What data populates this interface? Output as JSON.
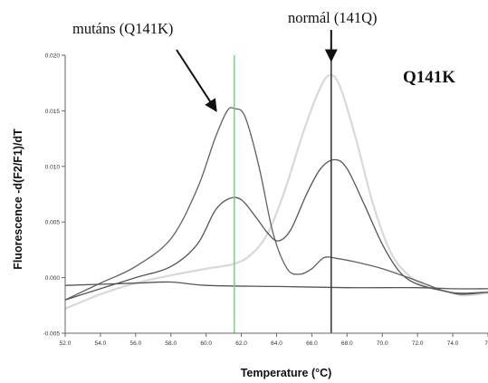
{
  "chart_data": {
    "type": "line",
    "title": "Q141K",
    "xlabel": "Temperature (°C)",
    "ylabel": "Fluorescence -d(F2/F1)/dT",
    "xlim": [
      52.0,
      76.0
    ],
    "ylim": [
      -0.005,
      0.02
    ],
    "x_ticks": [
      52.0,
      54.0,
      56.0,
      58.0,
      60.0,
      62.0,
      64.0,
      66.0,
      68.0,
      70.0,
      72.0,
      74.0,
      76.0
    ],
    "x_tick_labels": [
      "52.0",
      "54.0",
      "56.0",
      "58.0",
      "60.0",
      "62.0",
      "64.0",
      "66.0",
      "68.0",
      "70.0",
      "72.0",
      "74.0",
      "76"
    ],
    "y_ticks": [
      -0.005,
      0.0,
      0.005,
      0.01,
      0.015,
      0.02
    ],
    "y_tick_labels": [
      "-0.005",
      "0.000",
      "0.005",
      "0.010",
      "0.015",
      "0.020"
    ],
    "grid": false,
    "legend": "none",
    "series": [
      {
        "color": "#606060",
        "points": [
          [
            52.0,
            -0.002
          ],
          [
            54.0,
            -0.0005
          ],
          [
            56.0,
            0.001
          ],
          [
            58.0,
            0.0035
          ],
          [
            59.5,
            0.008
          ],
          [
            60.5,
            0.0125
          ],
          [
            61.2,
            0.015
          ],
          [
            61.6,
            0.0152
          ],
          [
            62.2,
            0.0145
          ],
          [
            63.0,
            0.01
          ],
          [
            63.8,
            0.004
          ],
          [
            64.6,
            0.0008
          ],
          [
            65.3,
            0.0003
          ],
          [
            66.0,
            0.0008
          ],
          [
            66.7,
            0.0018
          ],
          [
            67.5,
            0.0017
          ],
          [
            68.5,
            0.0014
          ],
          [
            70.0,
            0.0008
          ],
          [
            72.0,
            -0.0003
          ],
          [
            73.5,
            -0.0012
          ],
          [
            74.5,
            -0.0014
          ],
          [
            76.0,
            -0.0013
          ]
        ]
      },
      {
        "color": "#555555",
        "points": [
          [
            52.0,
            -0.002
          ],
          [
            54.0,
            -0.001
          ],
          [
            56.0,
            0.0
          ],
          [
            58.0,
            0.001
          ],
          [
            59.5,
            0.003
          ],
          [
            60.5,
            0.006
          ],
          [
            61.3,
            0.0071
          ],
          [
            62.0,
            0.007
          ],
          [
            62.8,
            0.0055
          ],
          [
            63.5,
            0.004
          ],
          [
            64.1,
            0.0033
          ],
          [
            64.8,
            0.0043
          ],
          [
            65.7,
            0.0075
          ],
          [
            66.5,
            0.0098
          ],
          [
            67.3,
            0.0106
          ],
          [
            68.0,
            0.0098
          ],
          [
            69.0,
            0.0065
          ],
          [
            70.0,
            0.003
          ],
          [
            71.0,
            0.0005
          ],
          [
            72.0,
            -0.0006
          ],
          [
            73.5,
            -0.0012
          ],
          [
            74.5,
            -0.0015
          ],
          [
            76.0,
            -0.0013
          ]
        ]
      },
      {
        "color": "#d8d8d8",
        "points": [
          [
            52.0,
            -0.0028
          ],
          [
            54.0,
            -0.0015
          ],
          [
            56.0,
            -0.0005
          ],
          [
            58.0,
            0.0002
          ],
          [
            60.0,
            0.0008
          ],
          [
            61.5,
            0.0012
          ],
          [
            62.5,
            0.002
          ],
          [
            63.5,
            0.004
          ],
          [
            64.5,
            0.008
          ],
          [
            65.5,
            0.013
          ],
          [
            66.4,
            0.0168
          ],
          [
            67.0,
            0.0182
          ],
          [
            67.6,
            0.0172
          ],
          [
            68.5,
            0.0125
          ],
          [
            69.5,
            0.0065
          ],
          [
            70.5,
            0.0022
          ],
          [
            71.5,
            0.0002
          ],
          [
            72.5,
            -0.0008
          ],
          [
            73.8,
            -0.0013
          ],
          [
            74.6,
            -0.0016
          ],
          [
            76.0,
            -0.0014
          ]
        ]
      },
      {
        "color": "#555555",
        "points": [
          [
            52.0,
            -0.0007
          ],
          [
            56.0,
            -0.0005
          ],
          [
            58.0,
            -0.0004
          ],
          [
            60.0,
            -0.0007
          ],
          [
            64.0,
            -0.0008
          ],
          [
            68.0,
            -0.0009
          ],
          [
            72.0,
            -0.0009
          ],
          [
            74.0,
            -0.001
          ],
          [
            76.0,
            -0.001
          ]
        ]
      }
    ],
    "vertical_lines": [
      {
        "x": 61.6,
        "color": "#7fcf7f"
      },
      {
        "x": 67.1,
        "color": "#333333"
      }
    ],
    "annotations": [
      {
        "text": "mutáns (Q141K)",
        "arrow_to": [
          61.4,
          0.0145
        ]
      },
      {
        "text": "normál (141Q)",
        "arrow_to": [
          67.1,
          0.0195
        ]
      }
    ]
  }
}
